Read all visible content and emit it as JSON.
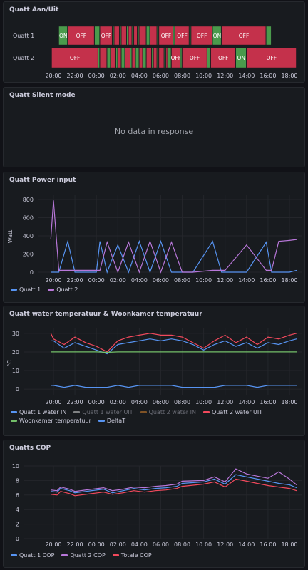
{
  "panels": {
    "aan_uit": {
      "title": "Quatt Aan/Uit",
      "rows": [
        "Quatt 1",
        "Quatt 2"
      ],
      "x_ticks": [
        "20:00",
        "22:00",
        "00:00",
        "02:00",
        "04:00",
        "06:00",
        "08:00",
        "10:00",
        "12:00",
        "14:00",
        "16:00",
        "18:00"
      ],
      "colors": {
        "on": "#4a9a4c",
        "off": "#c4314b"
      },
      "state_labels": {
        "on": "ON",
        "off": "OFF"
      },
      "quatt1_segments": [
        {
          "start": "20:30",
          "end": "21:20",
          "state": "ON"
        },
        {
          "start": "21:20",
          "end": "23:50",
          "state": "OFF"
        },
        {
          "start": "23:50",
          "end": "00:20",
          "state": "ON"
        },
        {
          "start": "00:20",
          "end": "01:30",
          "state": "OFF"
        },
        {
          "start": "01:30",
          "end": "01:40",
          "state": "ON"
        },
        {
          "start": "01:40",
          "end": "02:10",
          "state": "OFF"
        },
        {
          "start": "02:10",
          "end": "02:20",
          "state": "ON"
        },
        {
          "start": "02:20",
          "end": "02:50",
          "state": "OFF"
        },
        {
          "start": "02:50",
          "end": "03:00",
          "state": "ON"
        },
        {
          "start": "03:00",
          "end": "03:20",
          "state": "OFF"
        },
        {
          "start": "03:20",
          "end": "03:30",
          "state": "ON"
        },
        {
          "start": "03:30",
          "end": "03:50",
          "state": "OFF"
        },
        {
          "start": "03:50",
          "end": "04:00",
          "state": "ON"
        },
        {
          "start": "04:00",
          "end": "04:40",
          "state": "OFF"
        },
        {
          "start": "04:40",
          "end": "05:00",
          "state": "ON"
        },
        {
          "start": "05:00",
          "end": "05:40",
          "state": "OFF"
        },
        {
          "start": "05:40",
          "end": "05:50",
          "state": "ON"
        },
        {
          "start": "05:50",
          "end": "07:10",
          "state": "OFF"
        },
        {
          "start": "07:10",
          "end": "07:20",
          "state": "ON"
        },
        {
          "start": "07:20",
          "end": "08:40",
          "state": "OFF"
        },
        {
          "start": "08:40",
          "end": "08:50",
          "state": "ON"
        },
        {
          "start": "08:50",
          "end": "10:50",
          "state": "OFF"
        },
        {
          "start": "10:50",
          "end": "11:40",
          "state": "ON"
        },
        {
          "start": "11:40",
          "end": "15:50",
          "state": "OFF"
        },
        {
          "start": "15:50",
          "end": "16:20",
          "state": "ON"
        }
      ],
      "quatt2_segments": [
        {
          "start": "19:50",
          "end": "00:10",
          "state": "OFF"
        },
        {
          "start": "00:10",
          "end": "00:20",
          "state": "ON"
        },
        {
          "start": "00:20",
          "end": "01:00",
          "state": "OFF"
        },
        {
          "start": "01:00",
          "end": "01:20",
          "state": "ON"
        },
        {
          "start": "01:20",
          "end": "01:50",
          "state": "OFF"
        },
        {
          "start": "01:50",
          "end": "02:00",
          "state": "ON"
        },
        {
          "start": "02:00",
          "end": "02:20",
          "state": "OFF"
        },
        {
          "start": "02:20",
          "end": "02:40",
          "state": "ON"
        },
        {
          "start": "02:40",
          "end": "03:10",
          "state": "OFF"
        },
        {
          "start": "03:10",
          "end": "03:20",
          "state": "ON"
        },
        {
          "start": "03:20",
          "end": "03:40",
          "state": "OFF"
        },
        {
          "start": "03:40",
          "end": "04:00",
          "state": "ON"
        },
        {
          "start": "04:00",
          "end": "04:20",
          "state": "OFF"
        },
        {
          "start": "04:20",
          "end": "04:40",
          "state": "ON"
        },
        {
          "start": "04:40",
          "end": "05:10",
          "state": "OFF"
        },
        {
          "start": "05:10",
          "end": "05:20",
          "state": "ON"
        },
        {
          "start": "05:20",
          "end": "05:40",
          "state": "OFF"
        },
        {
          "start": "05:40",
          "end": "05:50",
          "state": "ON"
        },
        {
          "start": "05:50",
          "end": "06:20",
          "state": "OFF"
        },
        {
          "start": "06:20",
          "end": "06:30",
          "state": "ON"
        },
        {
          "start": "06:30",
          "end": "06:40",
          "state": "OFF"
        },
        {
          "start": "06:40",
          "end": "07:00",
          "state": "ON"
        },
        {
          "start": "07:00",
          "end": "07:50",
          "state": "OFF"
        },
        {
          "start": "07:50",
          "end": "08:00",
          "state": "ON"
        },
        {
          "start": "08:00",
          "end": "10:20",
          "state": "OFF"
        },
        {
          "start": "10:20",
          "end": "10:40",
          "state": "ON"
        },
        {
          "start": "10:40",
          "end": "13:00",
          "state": "OFF"
        },
        {
          "start": "13:00",
          "end": "14:00",
          "state": "ON"
        },
        {
          "start": "14:00",
          "end": "18:40",
          "state": "OFF"
        }
      ]
    },
    "silent_mode": {
      "title": "Quatt Silent mode",
      "message": "No data in response"
    },
    "power_input": {
      "title": "Quatt Power input",
      "ylabel": "Watt",
      "y_ticks": [
        "800",
        "600",
        "400",
        "200",
        "0"
      ],
      "x_ticks": [
        "20:00",
        "22:00",
        "00:00",
        "02:00",
        "04:00",
        "06:00",
        "08:00",
        "10:00",
        "12:00",
        "14:00",
        "16:00",
        "18:00"
      ],
      "legend": [
        {
          "label": "Quatt 1",
          "color": "#5794f2"
        },
        {
          "label": "Quatt 2",
          "color": "#b877d9"
        }
      ]
    },
    "water_temp": {
      "title": "Quatt water temperatuur & Woonkamer temperatuur",
      "ylabel": "°C",
      "y_ticks": [
        "30",
        "20",
        "10",
        "0"
      ],
      "x_ticks": [
        "20:00",
        "22:00",
        "00:00",
        "02:00",
        "04:00",
        "06:00",
        "08:00",
        "10:00",
        "12:00",
        "14:00",
        "16:00",
        "18:00"
      ],
      "legend": [
        {
          "label": "Quatt 1 water IN",
          "color": "#5794f2",
          "hidden": false
        },
        {
          "label": "Quatt 1 water UIT",
          "color": "#ffffff",
          "hidden": true
        },
        {
          "label": "Quatt 2 water IN",
          "color": "#ff9830",
          "hidden": true
        },
        {
          "label": "Quatt 2 water UIT",
          "color": "#f2495c",
          "hidden": false
        },
        {
          "label": "Woonkamer temperatuur",
          "color": "#73bf69",
          "hidden": false
        },
        {
          "label": "DeltaT",
          "color": "#5794f2",
          "hidden": false
        }
      ]
    },
    "cop": {
      "title": "Quatts COP",
      "y_ticks": [
        "10",
        "8",
        "6",
        "4",
        "2",
        "0"
      ],
      "x_ticks": [
        "20:00",
        "22:00",
        "00:00",
        "02:00",
        "04:00",
        "06:00",
        "08:00",
        "10:00",
        "12:00",
        "14:00",
        "16:00",
        "18:00"
      ],
      "legend": [
        {
          "label": "Quatt 1 COP",
          "color": "#5794f2"
        },
        {
          "label": "Quatt 2 COP",
          "color": "#b877d9"
        },
        {
          "label": "Totale COP",
          "color": "#f2495c"
        }
      ]
    }
  },
  "chart_data": [
    {
      "type": "timeline",
      "title": "Quatt Aan/Uit",
      "rows": [
        "Quatt 1",
        "Quatt 2"
      ],
      "x_range": [
        "19:30",
        "19:00"
      ]
    },
    {
      "type": "line",
      "title": "Quatt Power input",
      "ylabel": "Watt",
      "ylim": [
        0,
        800
      ],
      "x": [
        "19:45",
        "20:00",
        "20:30",
        "21:20",
        "22:00",
        "00:00",
        "00:20",
        "01:00",
        "02:00",
        "03:00",
        "04:00",
        "05:00",
        "06:00",
        "07:00",
        "08:00",
        "09:00",
        "10:50",
        "11:40",
        "12:00",
        "14:00",
        "15:50",
        "16:20",
        "17:00",
        "18:00",
        "18:40"
      ],
      "series": [
        {
          "name": "Quatt 1",
          "values": [
            0,
            0,
            0,
            340,
            0,
            0,
            340,
            0,
            300,
            0,
            340,
            0,
            340,
            0,
            0,
            0,
            340,
            0,
            0,
            0,
            330,
            0,
            0,
            0,
            20
          ]
        },
        {
          "name": "Quatt 2",
          "values": [
            360,
            790,
            20,
            20,
            20,
            20,
            20,
            330,
            0,
            330,
            0,
            340,
            0,
            330,
            0,
            0,
            20,
            20,
            20,
            300,
            20,
            20,
            340,
            350,
            360
          ]
        }
      ]
    },
    {
      "type": "line",
      "title": "Quatt water temperatuur & Woonkamer temperatuur",
      "ylabel": "°C",
      "ylim": [
        -3,
        33
      ],
      "x": [
        "19:45",
        "20:00",
        "21:00",
        "22:00",
        "23:00",
        "00:00",
        "01:00",
        "02:00",
        "03:00",
        "04:00",
        "05:00",
        "06:00",
        "07:00",
        "08:00",
        "09:00",
        "10:00",
        "11:00",
        "12:00",
        "13:00",
        "14:00",
        "15:00",
        "16:00",
        "17:00",
        "18:00",
        "18:40"
      ],
      "series": [
        {
          "name": "Quatt 1 water IN",
          "values": [
            26,
            26,
            22,
            25,
            23,
            21,
            19,
            24,
            25,
            26,
            27,
            26,
            27,
            26,
            24,
            21,
            24,
            26,
            23,
            25,
            22,
            25,
            24,
            26,
            27
          ]
        },
        {
          "name": "Quatt 2 water UIT",
          "values": [
            30,
            27,
            24,
            28,
            25,
            23,
            20,
            26,
            28,
            29,
            30,
            29,
            29,
            28,
            25,
            22,
            26,
            29,
            25,
            28,
            24,
            28,
            27,
            29,
            30
          ]
        },
        {
          "name": "Woonkamer temperatuur",
          "values": [
            20,
            20,
            20,
            20,
            20,
            20,
            19.8,
            20,
            20,
            20,
            20,
            20,
            20,
            20,
            20,
            20,
            20,
            20,
            20,
            20,
            20,
            20,
            20,
            20,
            20
          ]
        },
        {
          "name": "DeltaT",
          "values": [
            2,
            2,
            1,
            2,
            1,
            1,
            1,
            2,
            1,
            2,
            2,
            2,
            2,
            1,
            1,
            1,
            1,
            2,
            2,
            2,
            1,
            2,
            2,
            2,
            2
          ]
        }
      ]
    },
    {
      "type": "line",
      "title": "Quatts COP",
      "ylim": [
        0,
        10
      ],
      "x": [
        "19:45",
        "20:20",
        "20:40",
        "21:30",
        "22:00",
        "00:40",
        "01:30",
        "02:30",
        "03:30",
        "04:30",
        "05:30",
        "06:30",
        "07:30",
        "08:00",
        "10:00",
        "11:00",
        "12:00",
        "13:00",
        "14:00",
        "15:00",
        "16:00",
        "17:00",
        "18:00",
        "18:40"
      ],
      "series": [
        {
          "name": "Quatt 1 COP",
          "values": [
            6.5,
            6.4,
            6.9,
            6.6,
            6.3,
            6.8,
            6.3,
            6.6,
            6.9,
            6.7,
            6.9,
            7.0,
            7.2,
            7.6,
            7.8,
            8.2,
            7.5,
            8.8,
            8.5,
            8.2,
            7.9,
            7.6,
            7.4,
            7.0
          ]
        },
        {
          "name": "Quatt 2 COP",
          "values": [
            6.7,
            6.6,
            7.1,
            6.8,
            6.5,
            7.0,
            6.6,
            6.8,
            7.1,
            7.0,
            7.2,
            7.3,
            7.5,
            7.9,
            8.0,
            8.5,
            7.8,
            9.6,
            8.9,
            8.6,
            8.3,
            9.2,
            8.2,
            7.4
          ]
        },
        {
          "name": "Totale COP",
          "values": [
            6.1,
            6.0,
            6.5,
            6.2,
            5.9,
            6.4,
            6.1,
            6.3,
            6.6,
            6.4,
            6.6,
            6.7,
            6.9,
            7.2,
            7.5,
            7.8,
            7.1,
            8.2,
            7.9,
            7.6,
            7.3,
            7.1,
            6.9,
            6.6
          ]
        }
      ]
    }
  ]
}
